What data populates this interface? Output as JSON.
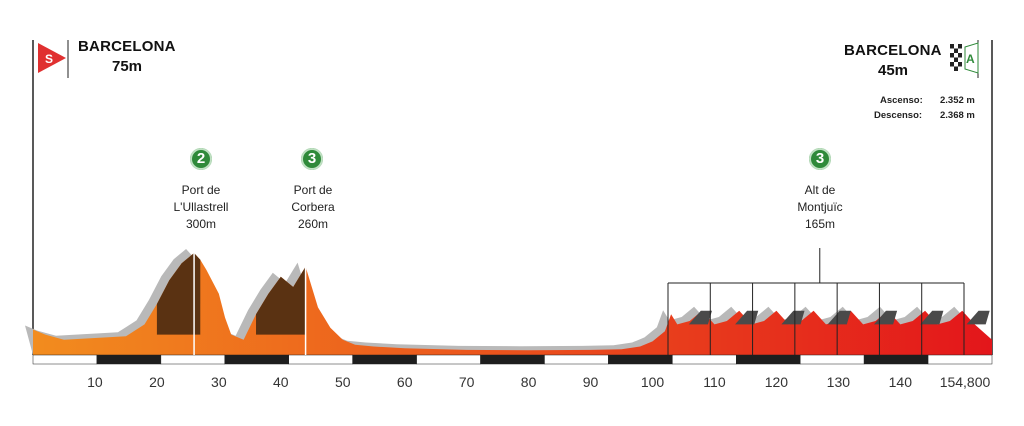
{
  "start": {
    "city": "BARCELONA",
    "altitude": "75m",
    "marker": "S"
  },
  "finish": {
    "city": "BARCELONA",
    "altitude": "45m",
    "marker": "A",
    "ascent_label": "Ascenso:",
    "ascent_value": "2.352 m",
    "descent_label": "Descenso:",
    "descent_value": "2.368 m"
  },
  "climbs": [
    {
      "category": "2",
      "name1": "Port de",
      "name2": "L'Ullastrell",
      "altitude": "300m"
    },
    {
      "category": "3",
      "name1": "Port de",
      "name2": "Corbera",
      "altitude": "260m"
    },
    {
      "category": "3",
      "name1": "Alt de",
      "name2": "Montjuïc",
      "altitude": "165m"
    }
  ],
  "colors": {
    "start_flag": "#e03030",
    "climb_badge": "#2f8a3a",
    "profile_start": "#f28c1e",
    "profile_end": "#e3161b"
  },
  "chart_data": {
    "type": "area",
    "title": "",
    "xlabel": "",
    "ylabel": "",
    "xlim": [
      0,
      154.8
    ],
    "x_ticks": [
      "10",
      "20",
      "30",
      "40",
      "50",
      "60",
      "70",
      "80",
      "90",
      "100",
      "110",
      "120",
      "130",
      "140",
      "154,800"
    ],
    "profile": {
      "x": [
        0,
        2,
        5,
        10,
        15,
        18,
        20,
        22,
        24,
        26,
        27,
        28,
        30,
        31,
        32,
        34,
        36,
        38,
        40,
        42,
        43,
        44,
        45,
        46,
        48,
        50,
        52,
        55,
        60,
        70,
        80,
        90,
        95,
        98,
        100,
        102,
        103,
        104,
        106,
        108,
        110,
        112,
        114,
        116,
        118,
        120,
        122,
        124,
        126,
        128,
        130,
        132,
        134,
        136,
        138,
        140,
        142,
        144,
        146,
        148,
        150,
        152,
        154.8
      ],
      "y": [
        75,
        60,
        45,
        50,
        55,
        90,
        150,
        220,
        270,
        300,
        280,
        250,
        180,
        110,
        60,
        45,
        120,
        180,
        230,
        200,
        230,
        260,
        200,
        140,
        80,
        45,
        30,
        25,
        20,
        15,
        14,
        15,
        17,
        25,
        40,
        70,
        120,
        90,
        100,
        130,
        90,
        100,
        130,
        90,
        100,
        130,
        90,
        100,
        130,
        90,
        100,
        130,
        90,
        100,
        130,
        90,
        100,
        130,
        90,
        100,
        130,
        90,
        45
      ]
    },
    "montjuic_laps": 7,
    "grid": false
  }
}
